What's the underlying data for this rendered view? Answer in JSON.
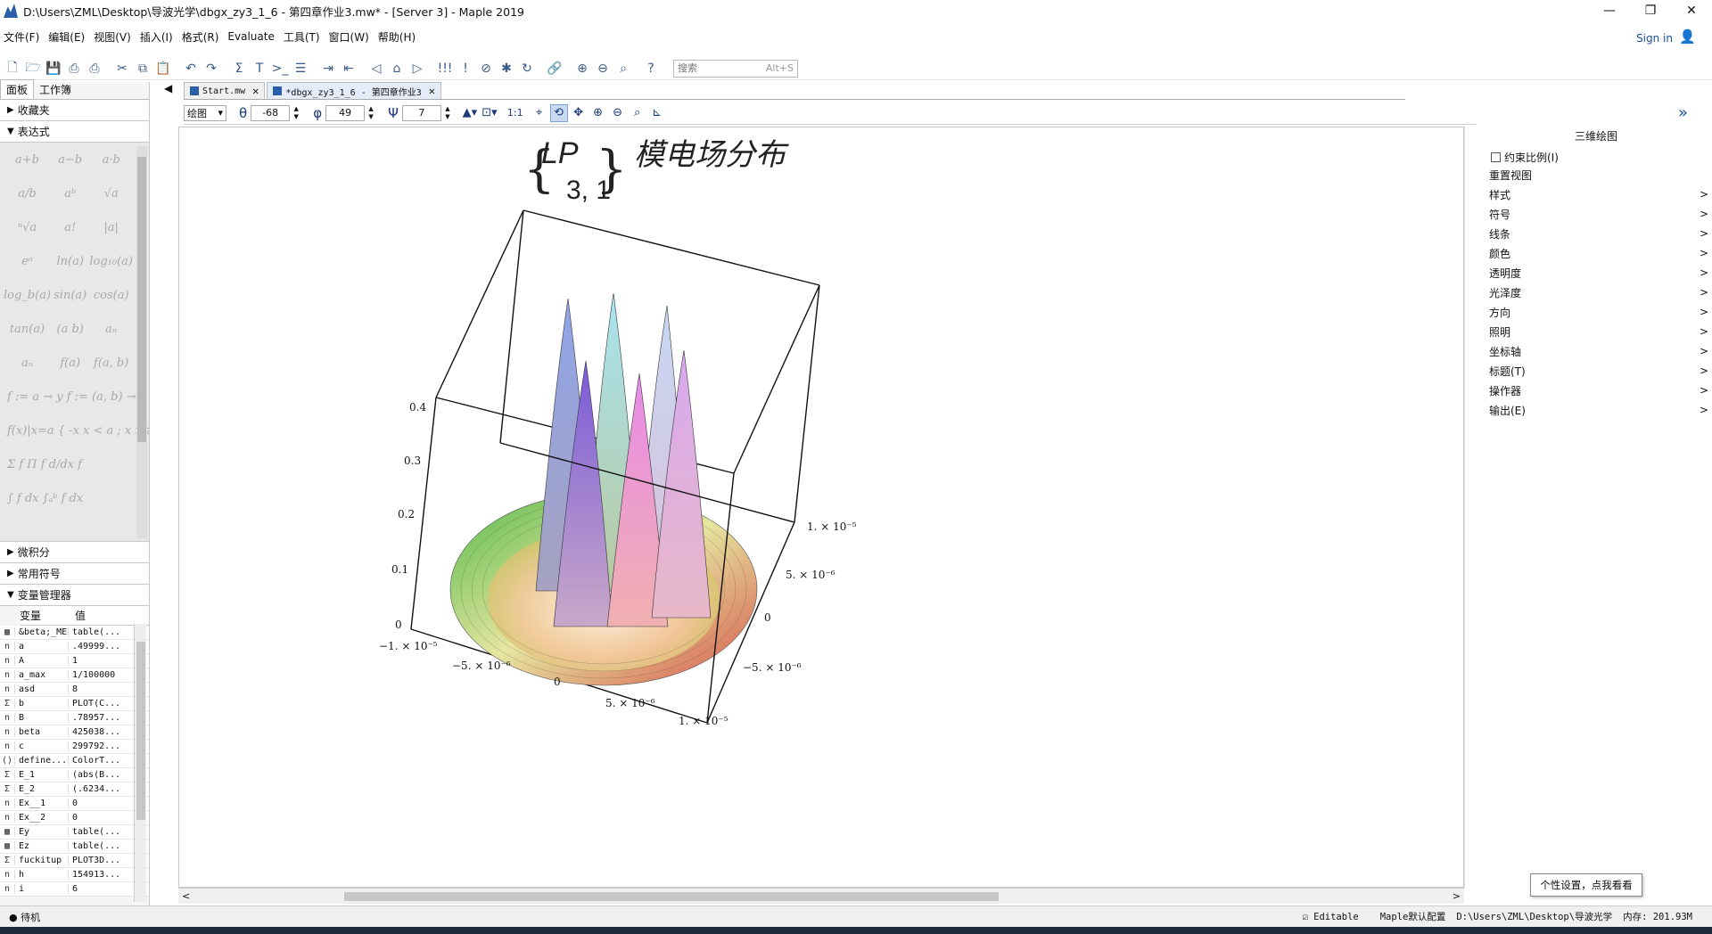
{
  "window": {
    "title": "D:\\Users\\ZML\\Desktop\\导波光学\\dbgx_zy3_1_6 - 第四章作业3.mw* - [Server 3] - Maple 2019",
    "minimize": "—",
    "restore": "❐",
    "close": "✕"
  },
  "menu": [
    "文件(F)",
    "编辑(E)",
    "视图(V)",
    "插入(I)",
    "格式(R)",
    "Evaluate",
    "工具(T)",
    "窗口(W)",
    "帮助(H)"
  ],
  "signin": {
    "label": "Sign in",
    "icon": "user-icon"
  },
  "search": {
    "placeholder": "搜索",
    "shortcut": "Alt+S"
  },
  "left_panel": {
    "tabs": [
      "面板",
      "工作簿"
    ],
    "sections": {
      "favorites": "收藏夹",
      "expressions": "表达式",
      "calculus": "微积分",
      "common_symbols": "常用符号",
      "variable_manager": "变量管理器"
    },
    "palette": [
      "a+b",
      "a−b",
      "a·b",
      "a/b",
      "aᵇ",
      "√a",
      "ⁿ√a",
      "a!",
      "|a|",
      "eᵃ",
      "ln(a)",
      "log₁₀(a)",
      "log_b(a)",
      "sin(a)",
      "cos(a)",
      "tan(a)",
      "(a b)",
      "aₙ",
      "aₙ",
      "f(a)",
      "f(a, b)"
    ],
    "palette_wide": [
      "f := a → y  f := (a, b) → z",
      "f(x)|x=a   { -x  x < a ;  x  x ≥ a",
      "Σ f    Π f    d/dx f",
      "∫ f dx    ∫ₐᵇ f dx"
    ],
    "var_headers": [
      "变量",
      "值"
    ],
    "variables": [
      {
        "icon": "▦",
        "name": "&beta;_ME",
        "value": "table(..."
      },
      {
        "icon": "n",
        "name": "a",
        "value": ".49999..."
      },
      {
        "icon": "n",
        "name": "A",
        "value": "1"
      },
      {
        "icon": "n",
        "name": "a_max",
        "value": "1/100000"
      },
      {
        "icon": "n",
        "name": "asd",
        "value": "8"
      },
      {
        "icon": "Σ",
        "name": "b",
        "value": "PLOT(C..."
      },
      {
        "icon": "n",
        "name": "B",
        "value": ".78957..."
      },
      {
        "icon": "n",
        "name": "beta",
        "value": "425038..."
      },
      {
        "icon": "n",
        "name": "c",
        "value": "299792..."
      },
      {
        "icon": "()",
        "name": "define...",
        "value": "ColorT..."
      },
      {
        "icon": "Σ",
        "name": "E_1",
        "value": "(abs(B..."
      },
      {
        "icon": "Σ",
        "name": "E_2",
        "value": "(.6234..."
      },
      {
        "icon": "n",
        "name": "Ex__1",
        "value": "0"
      },
      {
        "icon": "n",
        "name": "Ex__2",
        "value": "0"
      },
      {
        "icon": "▦",
        "name": "Ey",
        "value": "table(..."
      },
      {
        "icon": "▦",
        "name": "Ez",
        "value": "table(..."
      },
      {
        "icon": "Σ",
        "name": "fuckitup",
        "value": "PLOT3D..."
      },
      {
        "icon": "n",
        "name": "h",
        "value": "154913..."
      },
      {
        "icon": "n",
        "name": "i",
        "value": "6"
      }
    ]
  },
  "doc_tabs": [
    {
      "label": "Start.mw",
      "active": false
    },
    {
      "label": "*dbgx_zy3_1_6 - 第四章作业3",
      "active": true
    }
  ],
  "plot_toolbar": {
    "mode": "绘图",
    "theta": "-68",
    "phi": "49",
    "psi": "7",
    "ratio": "1:1"
  },
  "plot": {
    "title_math": "LP",
    "title_sub": "3, 1",
    "title_text": "模电场分布",
    "z_ticks": [
      "0.4",
      "0.3",
      "0.2",
      "0.1",
      "0"
    ],
    "x_ticks": [
      "−1. × 10⁻⁵",
      "−5. × 10⁻⁶",
      "0",
      "5. × 10⁻⁶",
      "1. × 10⁻⁵"
    ],
    "y_ticks": [
      "1. × 10⁻⁵",
      "5. × 10⁻⁶",
      "0",
      "−5. × 10⁻⁶"
    ]
  },
  "right_panel": {
    "title": "三维绘图",
    "constrain": "约束比例(I)",
    "reset_view": "重置视图",
    "items": [
      "样式",
      "符号",
      "线条",
      "颜色",
      "透明度",
      "光泽度",
      "方向",
      "照明",
      "坐标轴",
      "标题(T)",
      "操作器",
      "输出(E)"
    ]
  },
  "status": {
    "state": "待机",
    "editable": "Editable",
    "config": "Maple默认配置",
    "path": "D:\\Users\\ZML\\Desktop\\导波光学",
    "memory": "内存: 201.93M"
  },
  "tooltip": "个性设置，点我看看",
  "colors": {
    "accent": "#1a4e9a",
    "toolbar_icon": "#3a5a8a"
  }
}
